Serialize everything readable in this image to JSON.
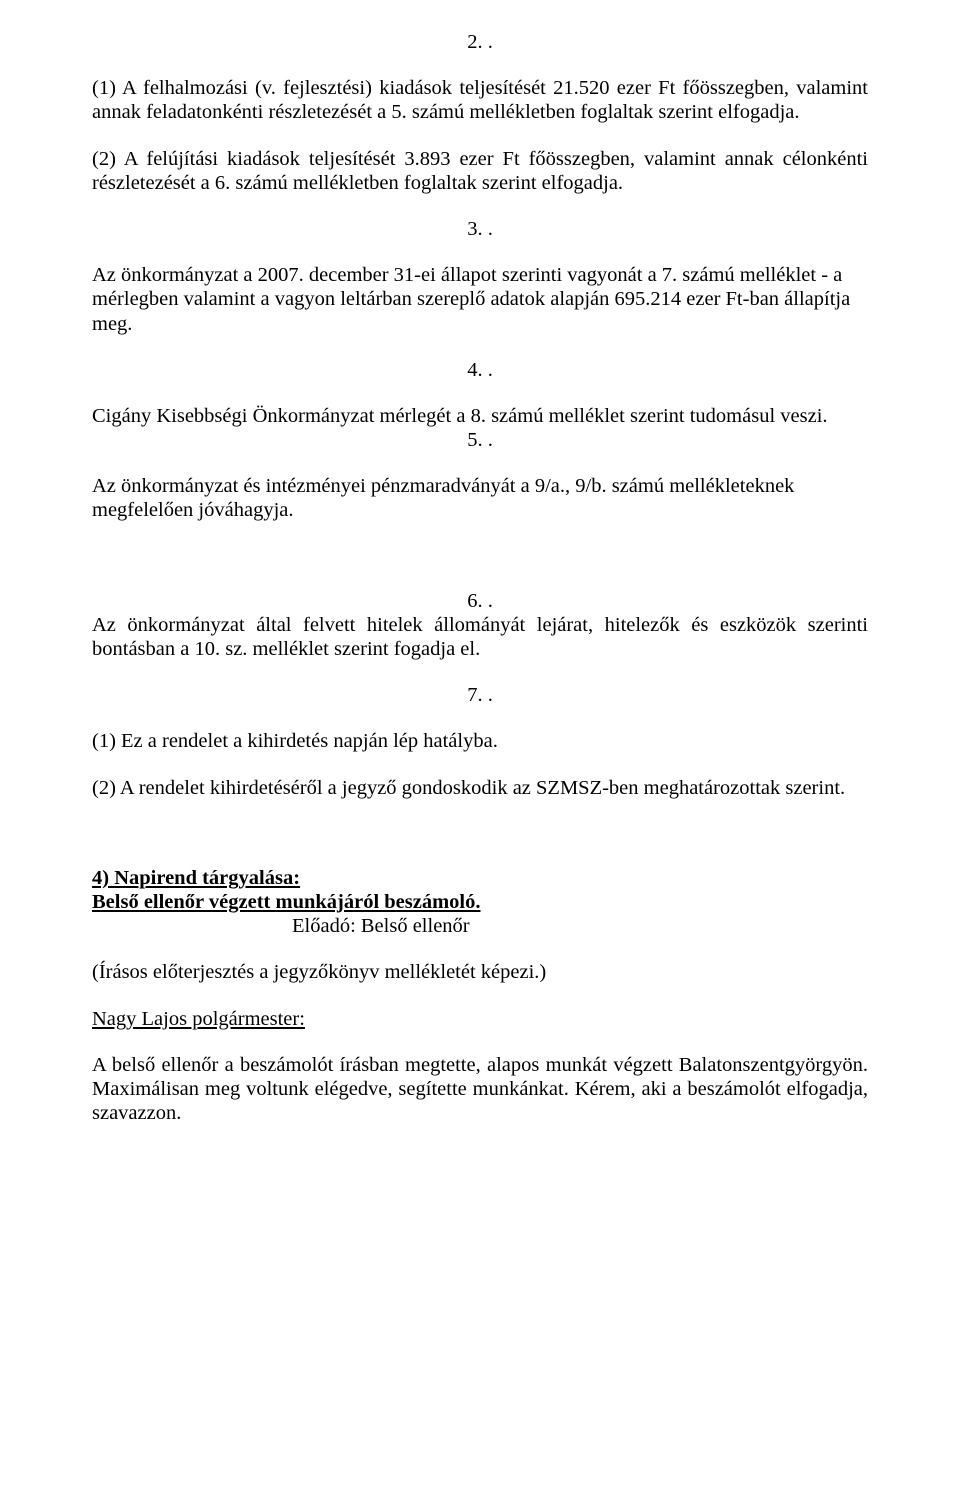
{
  "sections": {
    "s2": {
      "num": "2. ."
    },
    "s3": {
      "num": "3. ."
    },
    "s4": {
      "num": "4. ."
    },
    "s5": {
      "num": "5. ."
    },
    "s6": {
      "num": "6. ."
    },
    "s7": {
      "num": "7. ."
    }
  },
  "paragraphs": {
    "p2_1": "(1) A felhalmozási (v. fejlesztési) kiadások teljesítését 21.520 ezer Ft főösszegben, valamint annak feladatonkénti részletezését a 5. számú mellékletben foglaltak szerint elfogadja.",
    "p2_2": "(2) A felújítási kiadások teljesítését 3.893 ezer Ft főösszegben, valamint annak célonkénti részletezését a 6. számú mellékletben foglaltak szerint elfogadja.",
    "p3_1": "Az önkormányzat a 2007. december 31-ei állapot szerinti vagyonát a 7. számú melléklet - a mérlegben valamint a vagyon leltárban szereplő adatok alapján 695.214 ezer Ft-ban állapítja meg.",
    "p4_1": "Cigány Kisebbségi Önkormányzat mérlegét a 8. számú melléklet szerint tudomásul veszi.",
    "p5_1": "Az önkormányzat és intézményei pénzmaradványát a 9/a., 9/b. számú mellékleteknek megfelelően jóváhagyja.",
    "p6_1": "Az önkormányzat által felvett hitelek állományát lejárat, hitelezők és eszközök szerinti bontásban a 10. sz. melléklet szerint fogadja el.",
    "p7_1": "(1) Ez a rendelet a kihirdetés napján lép hatályba.",
    "p7_2": "(2) A rendelet kihirdetéséről a jegyző gondoskodik az SZMSZ-ben meghatározottak szerint."
  },
  "agenda": {
    "item4_title": "4) Napirend tárgyalása:",
    "item4_subject": "Belső ellenőr végzett munkájáról beszámoló.",
    "presenter": "Előadó: Belső ellenőr",
    "note": "(Írásos előterjesztés a jegyzőkönyv mellékletét képezi.)",
    "speaker": "Nagy Lajos polgármester:",
    "speech": "A belső ellenőr a beszámolót írásban megtette, alapos munkát végzett Balatonszentgyörgyön. Maximálisan meg voltunk elégedve, segítette munkánkat. Kérem, aki a beszámolót elfogadja, szavazzon."
  },
  "colors": {
    "background": "#ffffff",
    "text": "#000000"
  },
  "typography": {
    "font_family": "Times New Roman",
    "font_size_pt": 15,
    "line_height": 1.18
  }
}
